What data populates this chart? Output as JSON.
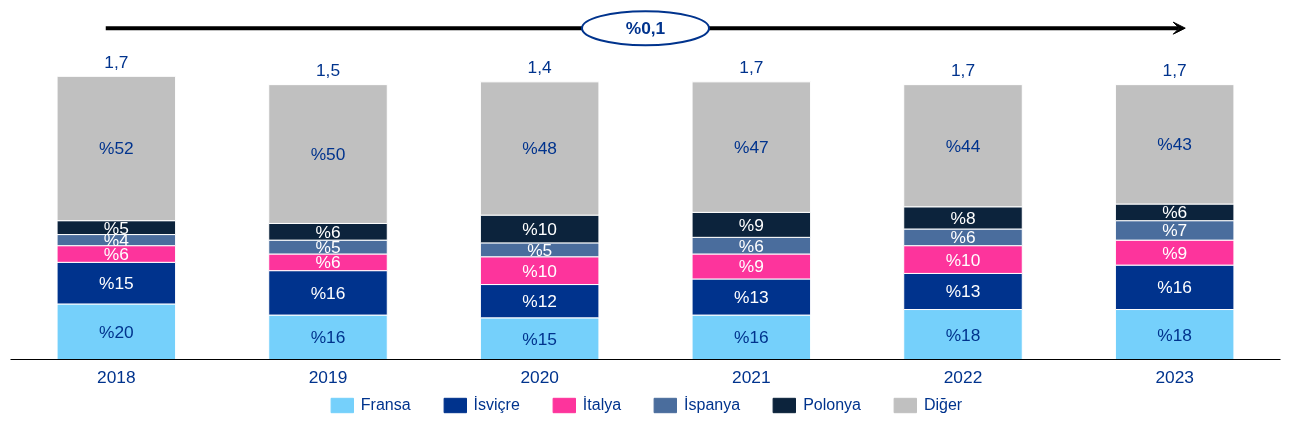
{
  "chart_data": {
    "type": "bar",
    "stacked": true,
    "categories": [
      "2018",
      "2019",
      "2020",
      "2021",
      "2022",
      "2023"
    ],
    "series": [
      {
        "name": "Fransa",
        "color": "#75d0fb",
        "values": [
          20,
          16,
          15,
          16,
          18,
          18
        ],
        "value_labels": [
          "%20",
          "%16",
          "%15",
          "%16",
          "%18",
          "%18"
        ]
      },
      {
        "name": "İsviçre",
        "color": "#00338d",
        "values": [
          15,
          16,
          12,
          13,
          13,
          16
        ],
        "value_labels": [
          "%15",
          "%16",
          "%12",
          "%13",
          "%13",
          "%16"
        ]
      },
      {
        "name": "İtalya",
        "color": "#fd349c",
        "values": [
          6,
          6,
          10,
          9,
          10,
          9
        ],
        "value_labels": [
          "%6",
          "%6",
          "%10",
          "%9",
          "%10",
          "%9"
        ]
      },
      {
        "name": "İspanya",
        "color": "#4a6d9d",
        "values": [
          4,
          5,
          5,
          6,
          6,
          7
        ],
        "value_labels": [
          "%4",
          "%5",
          "%5",
          "%6",
          "%6",
          "%7"
        ]
      },
      {
        "name": "Polonya",
        "color": "#0c233c",
        "values": [
          5,
          6,
          10,
          9,
          8,
          6
        ],
        "value_labels": [
          "%5",
          "%6",
          "%10",
          "%9",
          "%8",
          "%6"
        ]
      },
      {
        "name": "Diğer",
        "color": "#c0c0c0",
        "values": [
          52,
          50,
          48,
          47,
          44,
          43
        ],
        "value_labels": [
          "%52",
          "%50",
          "%48",
          "%47",
          "%44",
          "%43"
        ]
      }
    ],
    "annotations": [
      "%0,1",
      {
        "text": "1,7",
        "x": "2018",
        "y": 102
      },
      {
        "text": "1,5",
        "x": "2019",
        "y": 99
      },
      {
        "text": "1,4",
        "x": "2020",
        "y": 100
      },
      {
        "text": "1,7",
        "x": "2021",
        "y": 100
      },
      {
        "text": "1,7",
        "x": "2022",
        "y": 99
      },
      {
        "text": "1,7",
        "x": "2023",
        "y": 99
      }
    ],
    "legend": "bottom",
    "grid": false
  }
}
